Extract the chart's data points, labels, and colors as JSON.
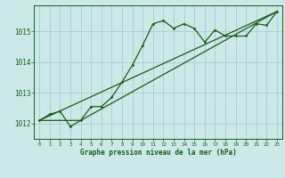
{
  "background_color": "#cce8e8",
  "grid_color": "#aacccc",
  "line_color": "#1a5c1a",
  "xlabel": "Graphe pression niveau de la mer (hPa)",
  "xlim": [
    -0.5,
    23.5
  ],
  "ylim": [
    1011.5,
    1015.85
  ],
  "yticks": [
    1012,
    1013,
    1014,
    1015
  ],
  "xticks": [
    0,
    1,
    2,
    3,
    4,
    5,
    6,
    7,
    8,
    9,
    10,
    11,
    12,
    13,
    14,
    15,
    16,
    17,
    18,
    19,
    20,
    21,
    22,
    23
  ],
  "series1_x": [
    0,
    1,
    2,
    3,
    4,
    5,
    6,
    7,
    8,
    9,
    10,
    11,
    12,
    13,
    14,
    15,
    16,
    17,
    18,
    19,
    20,
    21,
    22,
    23
  ],
  "series1_y": [
    1012.1,
    1012.3,
    1012.4,
    1011.9,
    1012.1,
    1012.55,
    1012.55,
    1012.85,
    1013.35,
    1013.9,
    1014.55,
    1015.25,
    1015.35,
    1015.1,
    1015.25,
    1015.1,
    1014.65,
    1015.05,
    1014.85,
    1014.85,
    1014.85,
    1015.25,
    1015.2,
    1015.65
  ],
  "series2_x": [
    0,
    23
  ],
  "series2_y": [
    1012.1,
    1015.65
  ],
  "series3_x": [
    0,
    4,
    23
  ],
  "series3_y": [
    1012.1,
    1012.1,
    1015.65
  ]
}
